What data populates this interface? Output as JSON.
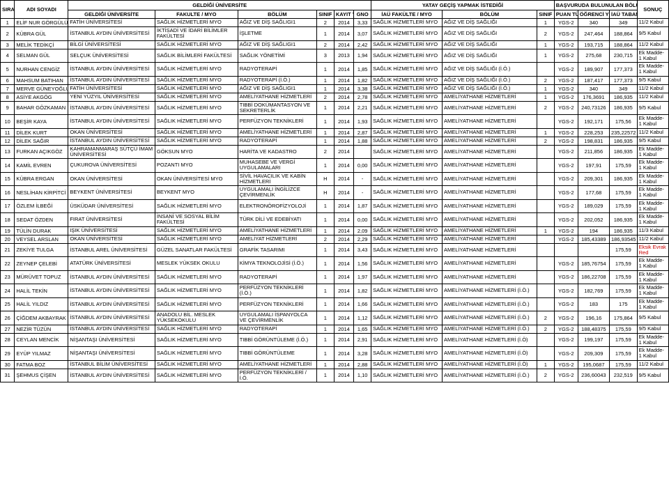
{
  "headers": {
    "group_g": "GELDİĞİ ÜNİVERSİTE",
    "group_y": "YATAY GEÇİŞ YAPMAK İSTEDİĞİ",
    "group_b": "BAŞVURUDA BULUNULAN BÖLÜME AİT",
    "sira": "SIRA",
    "adi": "ADI SOYADI",
    "gu": "GELDİĞİ ÜNİVERSİTE",
    "fak": "FAKULTE / MYO",
    "bolum": "BÖLÜM",
    "sinif": "SINIF",
    "kayit": "KAYIT YILI",
    "gno": "GNO",
    "iaufak": "İAÜ FAKÜLTE / MYO",
    "bolum2": "BÖLÜM",
    "sinif2": "SINIF",
    "puan_turu": "PUAN TÜRÜ",
    "ogrenci": "ÖĞRENCİ YERLEŞME PUANI",
    "iau_taban": "İAÜ TABAN PUANI",
    "sonuc": "SONUÇ"
  },
  "rows": [
    {
      "n": "1",
      "ad": "ELİF NUR GÖRGÜLÜ",
      "gu": "FATİH ÜNİVERSİTESİ",
      "fak": "SAĞLIK HİZMETLERİ MYO",
      "bol": "AĞIZ VE DİŞ SAĞLIGI1",
      "si": "2",
      "yi": "2014",
      "g": "3,33",
      "if": "SAĞLIK HİZMETLERİ MYO",
      "b2": "AĞIZ VE DİŞ SAĞLIĞI",
      "s2": "1",
      "pt": "YGS-2",
      "yp": "340",
      "tp": "349",
      "so": "11/2 Kabul"
    },
    {
      "n": "2",
      "ad": "KÜBRA GÜL",
      "gu": "İSTANBUL AYDIN ÜNİVERSİTESİ",
      "fak": "İKTİSADİ VE İDARİ BİLİMLER FAKÜLTESİ",
      "bol": "İŞLETME",
      "si": "1",
      "yi": "2014",
      "g": "3,07",
      "if": "SAĞLIK HİZMETLERİ MYO",
      "b2": "AĞIZ VE DİŞ SAĞLIĞI",
      "s2": "2",
      "pt": "YGS-2",
      "yp": "247,464",
      "tp": "188,864",
      "so": "9/5 Kabul"
    },
    {
      "n": "3",
      "ad": "MELİK TEDİKÇİ",
      "gu": "BİLGİ ÜNİVERSİTESİ",
      "fak": "SAĞLIK HİZMETLERİ MYO",
      "bol": "AĞIZ VE DİŞ SAĞLIGI1",
      "si": "2",
      "yi": "2014",
      "g": "2,42",
      "if": "SAĞLIK HİZMETLERİ MYO",
      "b2": "AĞIZ VE DİŞ SAĞLIĞI",
      "s2": "1",
      "pt": "YGS-2",
      "yp": "193,715",
      "tp": "188,864",
      "so": "11/2 Kabul"
    },
    {
      "n": "4",
      "ad": "SELMAN GÜL",
      "gu": "SELÇUK ÜNİVERSİTESİ",
      "fak": "SAĞLIK BİLİMLERİ FAKÜLTESİ",
      "bol": "SAĞLIK YÖNETİMİ",
      "si": "3",
      "yi": "2013",
      "g": "1,94",
      "if": "SAĞLIK HİZMETLERİ MYO",
      "b2": "AĞIZ VE DİŞ SAĞLIĞI",
      "s2": "1",
      "pt": "YGS-2",
      "yp": "275,68",
      "tp": "230,715",
      "so": "Ek Madde-1 Kabul"
    },
    {
      "n": "5",
      "ad": "NURHAN CENGİZ",
      "gu": "İSTANBUL AYDIN ÜNİVERSİTESİ",
      "fak": "SAĞLIK HİZMETLERİ MYO",
      "bol": "RADYOTERAPİ",
      "si": "1",
      "yi": "2014",
      "g": "1,85",
      "if": "SAĞLIK HİZMETLERİ MYO",
      "b2": "AĞIZ VE DİŞ SAĞLIĞI (İ.Ö.)",
      "s2": "",
      "pt": "YGS-2",
      "yp": "189,907",
      "tp": "177,373",
      "so": "Ek Madde-1 Kabul"
    },
    {
      "n": "6",
      "ad": "MAHSUM BATIHAN",
      "gu": "İSTANBUL AYDIN ÜNİVERSİTESİ",
      "fak": "SAĞLIK HİZMETLERİ MYO",
      "bol": "RADYOTERAPİ (İ.Ö.)",
      "si": "1",
      "yi": "2014",
      "g": "1,82",
      "if": "SAĞLIK HİZMETLERİ MYO",
      "b2": "AĞIZ VE DİŞ SAĞLIĞI (İ.Ö.)",
      "s2": "2",
      "pt": "YGS-2",
      "yp": "187,417",
      "tp": "177,373",
      "so": "9/5 Kabul"
    },
    {
      "n": "7",
      "ad": "MERVE GÜNEYOĞLU",
      "gu": "FATİH ÜNİVERSİTESİ",
      "fak": "SAĞLIK HİZMETLERİ MYO",
      "bol": "AĞIZ VE DİŞ SAĞLIGI1",
      "si": "1",
      "yi": "2014",
      "g": "3,38",
      "if": "SAĞLIK HİZMETLERİ MYO",
      "b2": "AĞIZ VE DİŞ SAĞLIĞI (İ.Ö.)",
      "s2": "1",
      "pt": "YGS-2",
      "yp": "340",
      "tp": "349",
      "so": "11/2 Kabul"
    },
    {
      "n": "8",
      "ad": "ASİYE AKGÖG",
      "gu": "YENİ YÜZYIL ÜNİVERSİTESİ",
      "fak": "SAĞLIK HİZMETLERİ MYO",
      "bol": "AMELİYATHANE HİZMETLERİ",
      "si": "2",
      "yi": "2014",
      "g": "2,78",
      "if": "SAĞLIK HİZMETLERİ MYO",
      "b2": "AMELİYATHANE HİZMETLERİ",
      "s2": "1",
      "pt": "YGS-2",
      "yp": "176,3691",
      "tp": "186,935",
      "so": "11/2 Kabul"
    },
    {
      "n": "9",
      "ad": "BAHAR GÖZKAMAN",
      "gu": "İSTANBUL AYDIN ÜNİVERSİTESİ",
      "fak": "SAĞLIK HİZMETLERİ MYO",
      "bol": "TIBBİ DOKÜMANTASYON VE SEKRETERLİK",
      "si": "1",
      "yi": "2014",
      "g": "2,21",
      "if": "SAĞLIK HİZMETLERİ MYO",
      "b2": "AMELİYATHANE HİZMETLERİ",
      "s2": "2",
      "pt": "YGS-2",
      "yp": "240,73126",
      "tp": "186,935",
      "so": "9/5 Kabul"
    },
    {
      "n": "10",
      "ad": "BEŞİR KAYA",
      "gu": "İSTANBUL AYDIN ÜNİVERSİTESİ",
      "fak": "SAĞLIK HİZMETLERİ MYO",
      "bol": "PERFÜZYON TEKNİKLERİ",
      "si": "1",
      "yi": "2014",
      "g": "1,93",
      "if": "SAĞLIK HİZMETLERİ MYO",
      "b2": "AMELİYATHANE HİZMETLERİ",
      "s2": "",
      "pt": "YGS-2",
      "yp": "192,171",
      "tp": "175,56",
      "so": "Ek Madde-1 Kabul"
    },
    {
      "n": "11",
      "ad": "DİLEK KURT",
      "gu": "OKAN ÜNİVERSİTESİ",
      "fak": "SAĞLIK HİZMETLERİ MYO",
      "bol": "AMELİYATHANE HİZMETLERİ",
      "si": "1",
      "yi": "2014",
      "g": "2,87",
      "if": "SAĞLIK HİZMETLERİ MYO",
      "b2": "AMELİYATHANE HİZMETLERİ",
      "s2": "1",
      "pt": "YGS-2",
      "yp": "228,253",
      "tp": "235,22572",
      "so": "11/2 Kabul"
    },
    {
      "n": "12",
      "ad": "DİLEK SAĞIR",
      "gu": "İSTANBUL AYDIN ÜNİVERSİTESİ",
      "fak": "SAĞLIK HİZMETLERİ MYO",
      "bol": "RADYOTERAPİ",
      "si": "1",
      "yi": "2014",
      "g": "1,88",
      "if": "SAĞLIK HİZMETLERİ MYO",
      "b2": "AMELİYATHANE HİZMETLERİ",
      "s2": "2",
      "pt": "YGS-2",
      "yp": "198,831",
      "tp": "186,935",
      "so": "9/5 Kabul"
    },
    {
      "n": "13",
      "ad": "FURKAN AÇIKGÖZ",
      "gu": "KAHRAMANMARAŞ SÜTÇÜ İMAM ÜNİVERSİTESİ",
      "fak": "GÖKSUN MYO",
      "bol": "HARİTA VE KADASTRO",
      "si": "2",
      "yi": "2014",
      "g": "",
      "if": "SAĞLIK HİZMETLERİ MYO",
      "b2": "AMELİYATHANE HİZMETLERİ",
      "s2": "",
      "pt": "YGS-2",
      "yp": "211,856",
      "tp": "186,935",
      "so": "Ek Madde-1 Kabul"
    },
    {
      "n": "14",
      "ad": "KAMİL EVREN",
      "gu": "ÇUKUROVA ÜNİVERSİTESİ",
      "fak": "POZANTI MYO",
      "bol": "MUHASEBE VE VERGİ UYGULAMALARI",
      "si": "1",
      "yi": "2014",
      "g": "0,00",
      "if": "SAĞLIK HİZMETLERİ MYO",
      "b2": "AMELİYATHANE HİZMETLERİ",
      "s2": "",
      "pt": "YGS-2",
      "yp": "197,91",
      "tp": "175,59",
      "so": "Ek Madde-1 Kabul"
    },
    {
      "n": "15",
      "ad": "KÜBRA ERGAN",
      "gu": "OKAN ÜNİVERSİTESİ",
      "fak": "OKAN ÜNİVERSİTESİ MYO",
      "bol": "SİVİL HAVACILIK VE KABİN HİZMETLERİ",
      "si": "H",
      "yi": "2014",
      "g": "-",
      "if": "SAĞLIK HİZMETLERİ MYO",
      "b2": "AMELİYATHANE HİZMETLERİ",
      "s2": "",
      "pt": "YGS-2",
      "yp": "209,301",
      "tp": "186,935",
      "so": "Ek Madde-1 Kabul"
    },
    {
      "n": "16",
      "ad": "NESLİHAN KİRPİTCİ",
      "gu": "BEYKENT ÜNİVERSİTESİ",
      "fak": "BEYKENT MYO",
      "bol": "UYGULAMALI İNGİLİZCE ÇEVİRMENLİK",
      "si": "H",
      "yi": "2014",
      "g": "-",
      "if": "SAĞLIK HİZMETLERİ MYO",
      "b2": "AMELİYATHANE HİZMETLERİ",
      "s2": "",
      "pt": "YGS-2",
      "yp": "177,68",
      "tp": "175,59",
      "so": "Ek Madde-1 Kabul"
    },
    {
      "n": "17",
      "ad": "ÖZLEM İLBEĞİ",
      "gu": "ÜSKÜDAR ÜNİVERSİTESİ",
      "fak": "SAĞLIK HİZMETLERİ MYO",
      "bol": "ELEKTRONÖROFİZYOLOJİ",
      "si": "1",
      "yi": "2014",
      "g": "1,87",
      "if": "SAĞLIK HİZMETLERİ MYO",
      "b2": "AMELİYATHANE HİZMETLERİ",
      "s2": "",
      "pt": "YGS-2",
      "yp": "189,029",
      "tp": "175,59",
      "so": "Ek Madde-1 Kabul"
    },
    {
      "n": "18",
      "ad": "SEDAT ÖZDEN",
      "gu": "FIRAT ÜNİVERSİTESİ",
      "fak": "İNSANİ VE SOSYAL BİLİM FAKÜLTESİ",
      "bol": "TÜRK DİLİ VE EDEBİYATI",
      "si": "1",
      "yi": "2014",
      "g": "0,00",
      "if": "SAĞLIK HİZMETLERİ MYO",
      "b2": "AMELİYATHANE HİZMETLERİ",
      "s2": "",
      "pt": "YGS-2",
      "yp": "202,052",
      "tp": "186,935",
      "so": "Ek Madde-1 Kabul"
    },
    {
      "n": "19",
      "ad": "TÜLİN DURAK",
      "gu": "IŞIK ÜNİVERSİTESİ",
      "fak": "SAĞLIK HİZMETLERİ MYO",
      "bol": "AMELİYATHANE HİZMETLERİ",
      "si": "1",
      "yi": "2014",
      "g": "2,09",
      "if": "SAĞLIK HİZMETLERİ MYO",
      "b2": "AMELİYATHANE HİZMETLERİ",
      "s2": "1",
      "pt": "YGS-2",
      "yp": "194",
      "tp": "186,935",
      "so": "11/3 Kabul"
    },
    {
      "n": "20",
      "ad": "VEYSEL ARSLAN",
      "gu": "OKAN ÜNİVERSİTESİ",
      "fak": "SAĞLIK HİZMETLERİ MYO",
      "bol": "AMELİYAT HİZMETLERİ",
      "si": "2",
      "yi": "2014",
      "g": "2,29",
      "if": "SAĞLIK HİZMETLERİ MYO",
      "b2": "AMELİYATHANE HİZMETLERİ",
      "s2": "",
      "pt": "YGS-2",
      "yp": "185,43389",
      "tp": "186,93545",
      "so": "11/2 Kabul"
    },
    {
      "n": "21",
      "ad": "ZEKİYE TULGA",
      "gu": "İSTANBUL AREL ÜNİVERSİTESİ",
      "fak": "GÜZEL  SANATLAR FAKÜLTESİ",
      "bol": "GRAFİK TASARIMI",
      "si": "1",
      "yi": "2014",
      "g": "3,43",
      "if": "SAĞLIK HİZMETLERİ MYO",
      "b2": "AMELİYATHANE HİZMETLERİ",
      "s2": "",
      "pt": "",
      "yp": "",
      "tp": "175,59",
      "so": "Eksik Evrak Red",
      "red": true
    },
    {
      "n": "22",
      "ad": "ZEYNEP ÇELEBİ",
      "gu": "ATATÜRK ÜNİVERSİTESİ",
      "fak": "MESLEK YÜKSEK OKULU",
      "bol": "KİMYA TEKNOLOJİSİ (İ.Ö.)",
      "si": "1",
      "yi": "2014",
      "g": "1,56",
      "if": "SAĞLIK HİZMETLERİ MYO",
      "b2": "AMELİYATHANE HİZMETLERİ",
      "s2": "",
      "pt": "YGS-2",
      "yp": "185,76754",
      "tp": "175,59",
      "so": "Ek Madde-1 Kabul"
    },
    {
      "n": "23",
      "ad": "MÜRÜVET TOPUZ",
      "gu": "İSTANBUL AYDIN ÜNİVERSİTESİ",
      "fak": "SAĞLIK HİZMETLERİ MYO",
      "bol": "RADYOTERAPİ",
      "si": "1",
      "yi": "2014",
      "g": "1,97",
      "if": "SAĞLIK HİZMETLERİ MYO",
      "b2": "AMELİYATHANE HİZMETLERİ",
      "s2": "",
      "pt": "YGS-2",
      "yp": "186,22708",
      "tp": "175,59",
      "so": "Ek Madde-1 Kabul"
    },
    {
      "n": "24",
      "ad": "HALİL TEKİN",
      "gu": "İSTANBUL AYDIN ÜNİVERSİTESİ",
      "fak": "SAĞLIK HİZMETLERİ MYO",
      "bol": "PERFÜZYON TEKNİKLERİ (İ.Ö.)",
      "si": "1",
      "yi": "2014",
      "g": "1,82",
      "if": "SAĞLIK HİZMETLERİ MYO",
      "b2": "AMELİYATHANE HİZMETLERİ (İ.Ö.)",
      "s2": "",
      "pt": "YGS-2",
      "yp": "182,769",
      "tp": "175,59",
      "so": "Ek Madde-1 Kabul"
    },
    {
      "n": "25",
      "ad": "HALİL YILDIZ",
      "gu": "İSTANBUL AYDIN ÜNİVERSİTESİ",
      "fak": "SAĞLIK HİZMETLERİ MYO",
      "bol": "PERFÜZYON TEKNİKLERİ",
      "si": "1",
      "yi": "2014",
      "g": "1,66",
      "if": "SAĞLIK HİZMETLERİ MYO",
      "b2": "AMELİYATHANE HİZMETLERİ (İ.Ö.)",
      "s2": "",
      "pt": "YGS-2",
      "yp": "183",
      "tp": "175",
      "so": "Ek Madde-1 Kabul"
    },
    {
      "n": "26",
      "ad": "ÇİĞDEM AKBAYRAK",
      "gu": "İSTANBUL AYDIN ÜNİVERSİTESİ",
      "fak": "ANADOLU BİL. MESLEK YÜKSEKOKULU",
      "bol": "UYGULAMALI İSPANYOLCA VE ÇEVİRMENLİK",
      "si": "1",
      "yi": "2014",
      "g": "1,12",
      "if": "SAĞLIK HİZMETLERİ MYO",
      "b2": "AMELİYATHANE HİZMETLERİ (İ.Ö.)",
      "s2": "2",
      "pt": "YGS-2",
      "yp": "196,16",
      "tp": "175,864",
      "so": "9/5 Kabul"
    },
    {
      "n": "27",
      "ad": "NEZİR TÜZÜN",
      "gu": "İSTANBUL AYDIN ÜNİVERSİTESİ",
      "fak": "SAĞLIK HİZMETLERİ MYO",
      "bol": "RADYOTERAPİ",
      "si": "1",
      "yi": "2014",
      "g": "1,65",
      "if": "SAĞLIK HİZMETLERİ MYO",
      "b2": "AMELİYATHANE HİZMETLERİ (İ.Ö.)",
      "s2": "2",
      "pt": "YGS-2",
      "yp": "188,48375",
      "tp": "175,59",
      "so": "9/5 Kabul"
    },
    {
      "n": "28",
      "ad": "CEYLAN MENCİK",
      "gu": "NİŞANTAŞI ÜNİVERSİTESİ",
      "fak": "SAĞLIK HİZMETLERİ MYO",
      "bol": "TIBBİ GÖRÜNTÜLEME (İ.Ö.)",
      "si": "1",
      "yi": "2014",
      "g": "2,91",
      "if": "SAĞLIK HİZMETLERİ MYO",
      "b2": "AMELİYATHANE HİZMETLERİ (İ.Ö)",
      "s2": "",
      "pt": "YGS-2",
      "yp": "199,197",
      "tp": "175,59",
      "so": "Ek Madde-1 Kabul"
    },
    {
      "n": "29",
      "ad": "EYÜP YILMAZ",
      "gu": "NİŞANTAŞI ÜNİVERSİTESİ",
      "fak": "SAĞLIK HİZMETLERİ MYO",
      "bol": "TIBBİ GÖRÜNTÜLEME",
      "si": "1",
      "yi": "2014",
      "g": "3,28",
      "if": "SAĞLIK HİZMETLERİ MYO",
      "b2": "AMELİYATHANE HİZMETLERİ (İ.Ö)",
      "s2": "",
      "pt": "YGS-2",
      "yp": "209,309",
      "tp": "175,59",
      "so": "Ek Madde-1 Kabul"
    },
    {
      "n": "30",
      "ad": "FATMA BOZ",
      "gu": "İSTANBUL BİLİM ÜNİVERSİTESİ",
      "fak": "SAĞLIK HİZMETLERİ MYO",
      "bol": "AMELİYATHANE HİZMETLERİ",
      "si": "1",
      "yi": "2014",
      "g": "2,88",
      "if": "SAĞLIK HİZMETLERİ MYO",
      "b2": "AMELİYATHANE HİZMETLERİ (İ.Ö)",
      "s2": "1",
      "pt": "YGS-2",
      "yp": "195,0687",
      "tp": "175,59",
      "so": "11/2 Kabul"
    },
    {
      "n": "31",
      "ad": "ŞEHMUS ÇİŞEN",
      "gu": "İSTANBUL AYDIN ÜNİVERSİTESİ",
      "fak": "SAĞLIK HİZMETLERİ MYO",
      "bol": "PERFÜZYON TEKNİKLERİ / İ.Ö.",
      "si": "1",
      "yi": "2014",
      "g": "1,10",
      "if": "SAĞLIK HİZMETLERİ MYO",
      "b2": "AMELİYATHANE HİZMETLERİ (İ.Ö.)",
      "s2": "2",
      "pt": "YGS-2",
      "yp": "236,60043",
      "tp": "232,519",
      "so": "9/5 Kabul"
    }
  ]
}
